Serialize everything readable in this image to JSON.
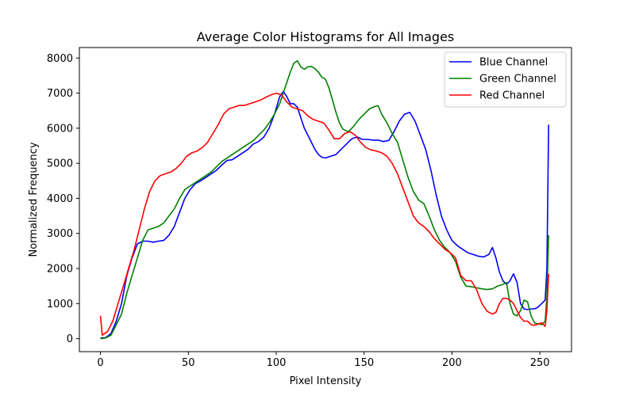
{
  "chart_data": {
    "type": "line",
    "title": "Average Color Histograms for All Images",
    "xlabel": "Pixel Intensity",
    "ylabel": "Normalized Frequency",
    "xlim": [
      -12,
      268
    ],
    "ylim": [
      -370,
      8300
    ],
    "xticks": [
      0,
      50,
      100,
      150,
      200,
      250
    ],
    "yticks": [
      0,
      1000,
      2000,
      3000,
      4000,
      5000,
      6000,
      7000,
      8000
    ],
    "grid": false,
    "legend_position": "top-right",
    "series": [
      {
        "name": "Blue Channel",
        "color": "#0000ff",
        "points": [
          [
            0,
            20
          ],
          [
            3,
            30
          ],
          [
            6,
            150
          ],
          [
            9,
            500
          ],
          [
            12,
            1000
          ],
          [
            15,
            1800
          ],
          [
            18,
            2300
          ],
          [
            21,
            2700
          ],
          [
            24,
            2780
          ],
          [
            27,
            2780
          ],
          [
            30,
            2750
          ],
          [
            33,
            2780
          ],
          [
            36,
            2800
          ],
          [
            39,
            2950
          ],
          [
            42,
            3200
          ],
          [
            45,
            3600
          ],
          [
            48,
            4000
          ],
          [
            51,
            4250
          ],
          [
            54,
            4420
          ],
          [
            57,
            4500
          ],
          [
            60,
            4600
          ],
          [
            63,
            4700
          ],
          [
            66,
            4800
          ],
          [
            69,
            4950
          ],
          [
            72,
            5080
          ],
          [
            75,
            5100
          ],
          [
            78,
            5200
          ],
          [
            81,
            5300
          ],
          [
            84,
            5400
          ],
          [
            87,
            5550
          ],
          [
            90,
            5620
          ],
          [
            93,
            5750
          ],
          [
            96,
            6000
          ],
          [
            99,
            6400
          ],
          [
            102,
            6900
          ],
          [
            104,
            7050
          ],
          [
            106,
            6900
          ],
          [
            108,
            6700
          ],
          [
            110,
            6700
          ],
          [
            112,
            6600
          ],
          [
            114,
            6300
          ],
          [
            116,
            6000
          ],
          [
            118,
            5800
          ],
          [
            120,
            5600
          ],
          [
            122,
            5400
          ],
          [
            124,
            5250
          ],
          [
            126,
            5170
          ],
          [
            128,
            5150
          ],
          [
            131,
            5200
          ],
          [
            134,
            5250
          ],
          [
            137,
            5400
          ],
          [
            140,
            5550
          ],
          [
            143,
            5700
          ],
          [
            146,
            5750
          ],
          [
            149,
            5680
          ],
          [
            152,
            5680
          ],
          [
            155,
            5660
          ],
          [
            158,
            5660
          ],
          [
            161,
            5620
          ],
          [
            164,
            5650
          ],
          [
            167,
            5900
          ],
          [
            170,
            6200
          ],
          [
            173,
            6400
          ],
          [
            176,
            6450
          ],
          [
            179,
            6200
          ],
          [
            182,
            5800
          ],
          [
            185,
            5400
          ],
          [
            188,
            4800
          ],
          [
            191,
            4100
          ],
          [
            194,
            3500
          ],
          [
            197,
            3100
          ],
          [
            200,
            2800
          ],
          [
            203,
            2650
          ],
          [
            206,
            2550
          ],
          [
            209,
            2450
          ],
          [
            212,
            2400
          ],
          [
            215,
            2350
          ],
          [
            218,
            2330
          ],
          [
            221,
            2400
          ],
          [
            223,
            2600
          ],
          [
            225,
            2300
          ],
          [
            227,
            1900
          ],
          [
            229,
            1650
          ],
          [
            231,
            1550
          ],
          [
            233,
            1650
          ],
          [
            235,
            1850
          ],
          [
            237,
            1600
          ],
          [
            239,
            1000
          ],
          [
            241,
            850
          ],
          [
            243,
            830
          ],
          [
            245,
            850
          ],
          [
            247,
            850
          ],
          [
            249,
            900
          ],
          [
            251,
            1000
          ],
          [
            253,
            1100
          ],
          [
            254,
            2000
          ],
          [
            255,
            6100
          ]
        ]
      },
      {
        "name": "Green Channel",
        "color": "#008000",
        "points": [
          [
            0,
            0
          ],
          [
            3,
            20
          ],
          [
            6,
            100
          ],
          [
            9,
            400
          ],
          [
            12,
            700
          ],
          [
            15,
            1300
          ],
          [
            18,
            1800
          ],
          [
            21,
            2300
          ],
          [
            24,
            2800
          ],
          [
            27,
            3100
          ],
          [
            30,
            3150
          ],
          [
            33,
            3200
          ],
          [
            36,
            3300
          ],
          [
            39,
            3500
          ],
          [
            42,
            3700
          ],
          [
            45,
            4000
          ],
          [
            48,
            4250
          ],
          [
            51,
            4350
          ],
          [
            54,
            4450
          ],
          [
            57,
            4550
          ],
          [
            60,
            4650
          ],
          [
            63,
            4750
          ],
          [
            66,
            4900
          ],
          [
            69,
            5050
          ],
          [
            72,
            5150
          ],
          [
            75,
            5250
          ],
          [
            78,
            5350
          ],
          [
            81,
            5450
          ],
          [
            84,
            5550
          ],
          [
            87,
            5650
          ],
          [
            90,
            5800
          ],
          [
            93,
            5950
          ],
          [
            96,
            6150
          ],
          [
            99,
            6400
          ],
          [
            102,
            6700
          ],
          [
            105,
            7150
          ],
          [
            108,
            7600
          ],
          [
            110,
            7850
          ],
          [
            112,
            7920
          ],
          [
            114,
            7750
          ],
          [
            116,
            7680
          ],
          [
            118,
            7750
          ],
          [
            120,
            7760
          ],
          [
            122,
            7700
          ],
          [
            124,
            7600
          ],
          [
            126,
            7450
          ],
          [
            128,
            7400
          ],
          [
            130,
            7150
          ],
          [
            132,
            6800
          ],
          [
            134,
            6450
          ],
          [
            136,
            6150
          ],
          [
            138,
            5970
          ],
          [
            141,
            5900
          ],
          [
            144,
            6050
          ],
          [
            147,
            6250
          ],
          [
            150,
            6400
          ],
          [
            153,
            6550
          ],
          [
            156,
            6620
          ],
          [
            158,
            6640
          ],
          [
            160,
            6400
          ],
          [
            163,
            6150
          ],
          [
            166,
            5850
          ],
          [
            169,
            5600
          ],
          [
            172,
            5100
          ],
          [
            175,
            4600
          ],
          [
            178,
            4200
          ],
          [
            181,
            3950
          ],
          [
            184,
            3850
          ],
          [
            187,
            3500
          ],
          [
            190,
            3100
          ],
          [
            193,
            2800
          ],
          [
            196,
            2600
          ],
          [
            199,
            2450
          ],
          [
            202,
            2200
          ],
          [
            205,
            1750
          ],
          [
            208,
            1500
          ],
          [
            211,
            1480
          ],
          [
            214,
            1450
          ],
          [
            217,
            1420
          ],
          [
            220,
            1400
          ],
          [
            223,
            1420
          ],
          [
            226,
            1500
          ],
          [
            229,
            1550
          ],
          [
            231,
            1600
          ],
          [
            233,
            1000
          ],
          [
            235,
            700
          ],
          [
            237,
            650
          ],
          [
            239,
            800
          ],
          [
            241,
            1100
          ],
          [
            243,
            1050
          ],
          [
            245,
            650
          ],
          [
            247,
            450
          ],
          [
            249,
            420
          ],
          [
            251,
            400
          ],
          [
            253,
            500
          ],
          [
            254,
            1200
          ],
          [
            255,
            2950
          ]
        ]
      },
      {
        "name": "Red Channel",
        "color": "#ff0000",
        "points": [
          [
            0,
            650
          ],
          [
            1,
            100
          ],
          [
            4,
            200
          ],
          [
            7,
            500
          ],
          [
            10,
            1000
          ],
          [
            13,
            1500
          ],
          [
            16,
            2000
          ],
          [
            19,
            2500
          ],
          [
            22,
            3100
          ],
          [
            25,
            3700
          ],
          [
            28,
            4200
          ],
          [
            31,
            4500
          ],
          [
            34,
            4650
          ],
          [
            37,
            4700
          ],
          [
            40,
            4750
          ],
          [
            43,
            4850
          ],
          [
            46,
            5000
          ],
          [
            49,
            5200
          ],
          [
            52,
            5300
          ],
          [
            55,
            5350
          ],
          [
            58,
            5450
          ],
          [
            61,
            5600
          ],
          [
            64,
            5850
          ],
          [
            67,
            6100
          ],
          [
            70,
            6400
          ],
          [
            73,
            6550
          ],
          [
            76,
            6600
          ],
          [
            79,
            6650
          ],
          [
            82,
            6650
          ],
          [
            85,
            6700
          ],
          [
            88,
            6750
          ],
          [
            91,
            6800
          ],
          [
            94,
            6880
          ],
          [
            97,
            6950
          ],
          [
            100,
            7000
          ],
          [
            103,
            6950
          ],
          [
            106,
            6750
          ],
          [
            109,
            6600
          ],
          [
            112,
            6550
          ],
          [
            115,
            6500
          ],
          [
            118,
            6350
          ],
          [
            121,
            6250
          ],
          [
            124,
            6200
          ],
          [
            127,
            6150
          ],
          [
            130,
            5950
          ],
          [
            133,
            5700
          ],
          [
            136,
            5700
          ],
          [
            139,
            5850
          ],
          [
            142,
            5900
          ],
          [
            145,
            5800
          ],
          [
            148,
            5600
          ],
          [
            151,
            5450
          ],
          [
            154,
            5380
          ],
          [
            157,
            5350
          ],
          [
            160,
            5300
          ],
          [
            163,
            5200
          ],
          [
            166,
            5000
          ],
          [
            169,
            4700
          ],
          [
            172,
            4300
          ],
          [
            175,
            3900
          ],
          [
            178,
            3500
          ],
          [
            181,
            3300
          ],
          [
            184,
            3200
          ],
          [
            187,
            3050
          ],
          [
            190,
            2850
          ],
          [
            193,
            2700
          ],
          [
            196,
            2550
          ],
          [
            199,
            2450
          ],
          [
            202,
            2300
          ],
          [
            205,
            1800
          ],
          [
            208,
            1650
          ],
          [
            211,
            1650
          ],
          [
            214,
            1400
          ],
          [
            217,
            1000
          ],
          [
            220,
            780
          ],
          [
            223,
            700
          ],
          [
            225,
            750
          ],
          [
            227,
            1000
          ],
          [
            229,
            1150
          ],
          [
            231,
            1150
          ],
          [
            233,
            1100
          ],
          [
            235,
            1000
          ],
          [
            237,
            800
          ],
          [
            239,
            600
          ],
          [
            241,
            500
          ],
          [
            243,
            500
          ],
          [
            245,
            400
          ],
          [
            247,
            380
          ],
          [
            249,
            420
          ],
          [
            251,
            450
          ],
          [
            253,
            350
          ],
          [
            254,
            800
          ],
          [
            255,
            1850
          ]
        ]
      }
    ]
  }
}
